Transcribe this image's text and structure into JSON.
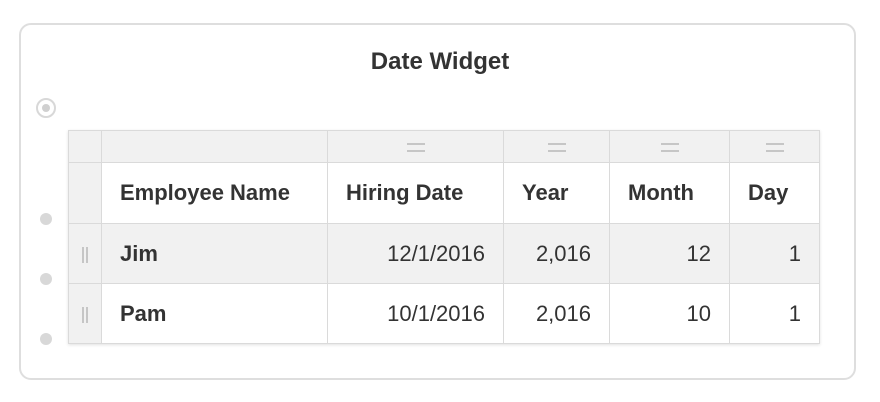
{
  "widget": {
    "title": "Date Widget"
  },
  "table": {
    "columns": [
      "Employee Name",
      "Hiring Date",
      "Year",
      "Month",
      "Day"
    ],
    "rows": [
      {
        "name": "Jim",
        "hiring_date": "12/1/2016",
        "year": "2,016",
        "month": "12",
        "day": "1"
      },
      {
        "name": "Pam",
        "hiring_date": "10/1/2016",
        "year": "2,016",
        "month": "10",
        "day": "1"
      }
    ]
  },
  "icons": {
    "column_menu": "column-menu-icon",
    "row_drag": "drag-handle-icon",
    "radio": "radio-selector-icon",
    "add_point": "dot-icon"
  }
}
